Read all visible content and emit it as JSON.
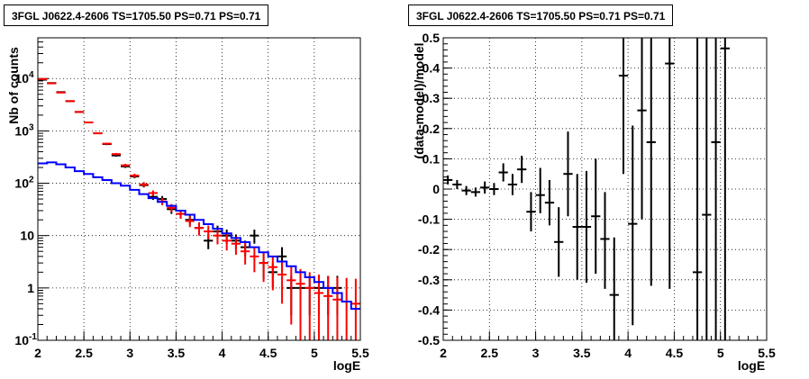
{
  "chart_data": [
    {
      "type": "scatter",
      "title": "3FGL J0622.4-2606 TS=1705.50 PS=0.71 PS=0.71",
      "xlabel": "logE",
      "ylabel": "Nb of counts",
      "xlim": [
        2,
        5.5
      ],
      "ylim": [
        0.1,
        60000
      ],
      "yscale": "log",
      "grid": true,
      "x_ticks": [
        "2",
        "2.5",
        "3",
        "3.5",
        "4",
        "4.5",
        "5",
        "5.5"
      ],
      "y_ticks": [
        {
          "v": 0.1,
          "label": "10",
          "exp": "-1"
        },
        {
          "v": 1,
          "label": "1",
          "exp": ""
        },
        {
          "v": 10,
          "label": "10",
          "exp": ""
        },
        {
          "v": 100,
          "label": "10",
          "exp": "2"
        },
        {
          "v": 1000,
          "label": "10",
          "exp": "3"
        },
        {
          "v": 10000,
          "label": "10",
          "exp": "4"
        }
      ],
      "series": [
        {
          "color": "#000000",
          "style": "errorbar",
          "points": [
            [
              2.05,
              9500,
              9400,
              9600
            ],
            [
              2.15,
              8200,
              8100,
              8300
            ],
            [
              2.25,
              5500,
              5420,
              5580
            ],
            [
              2.35,
              3700,
              3640,
              3760
            ],
            [
              2.45,
              2300,
              2250,
              2350
            ],
            [
              2.55,
              1450,
              1410,
              1490
            ],
            [
              2.65,
              900,
              870,
              930
            ],
            [
              2.75,
              560,
              536,
              584
            ],
            [
              2.85,
              340,
              322,
              358
            ],
            [
              2.95,
              210,
              196,
              224
            ],
            [
              3.05,
              135,
              124,
              146
            ],
            [
              3.15,
              92,
              83,
              101
            ],
            [
              3.25,
              55,
              48,
              62
            ],
            [
              3.35,
              50,
              43,
              57
            ],
            [
              3.45,
              32,
              26,
              38
            ],
            [
              3.55,
              26,
              21,
              31
            ],
            [
              3.65,
              20,
              16,
              24
            ],
            [
              3.75,
              14,
              10.5,
              17.5
            ],
            [
              3.85,
              8,
              5.5,
              10.5
            ],
            [
              3.95,
              12,
              8.5,
              15.5
            ],
            [
              4.05,
              10,
              7,
              13
            ],
            [
              4.15,
              8,
              5.5,
              10.5
            ],
            [
              4.25,
              6,
              4,
              8
            ],
            [
              4.35,
              10,
              7,
              13
            ],
            [
              4.45,
              3,
              1.5,
              4.5
            ],
            [
              4.55,
              2,
              1,
              3
            ],
            [
              4.65,
              4,
              2,
              6
            ],
            [
              4.75,
              1,
              0.3,
              1.7
            ],
            [
              4.85,
              1,
              0.3,
              1.7
            ],
            [
              4.95,
              1,
              0.3,
              1.7
            ],
            [
              5.05,
              1,
              0.3,
              1.7
            ],
            [
              5.15,
              1,
              0.3,
              1.7
            ],
            [
              5.25,
              1,
              0.3,
              1.7
            ]
          ]
        },
        {
          "color": "#ff0000",
          "style": "errorbar",
          "points": [
            [
              2.05,
              9800,
              9700,
              9900
            ],
            [
              2.15,
              8100,
              8010,
              8190
            ],
            [
              2.25,
              5400,
              5330,
              5470
            ],
            [
              2.35,
              3700,
              3640,
              3760
            ],
            [
              2.45,
              2300,
              2250,
              2350
            ],
            [
              2.55,
              1450,
              1410,
              1490
            ],
            [
              2.65,
              900,
              870,
              930
            ],
            [
              2.75,
              570,
              546,
              594
            ],
            [
              2.85,
              360,
              341,
              379
            ],
            [
              2.95,
              220,
              205,
              235
            ],
            [
              3.05,
              140,
              128,
              152
            ],
            [
              3.15,
              95,
              85,
              105
            ],
            [
              3.25,
              65,
              57,
              73
            ],
            [
              3.35,
              45,
              38,
              52
            ],
            [
              3.45,
              34,
              28,
              40
            ],
            [
              3.55,
              26,
              21,
              31
            ],
            [
              3.65,
              19,
              14.5,
              23.5
            ],
            [
              3.75,
              14,
              10,
              18
            ],
            [
              3.85,
              12,
              8.5,
              15.5
            ],
            [
              3.95,
              10,
              6.8,
              13.2
            ],
            [
              4.05,
              8,
              5.2,
              10.8
            ],
            [
              4.15,
              7,
              4.3,
              9.7
            ],
            [
              4.25,
              5,
              2.8,
              7.2
            ],
            [
              4.35,
              4,
              2,
              6
            ],
            [
              4.45,
              3,
              1.3,
              4.7
            ],
            [
              4.55,
              2.5,
              0.9,
              4.1
            ],
            [
              4.65,
              1.8,
              0.5,
              3.1
            ],
            [
              4.75,
              1.4,
              0.2,
              2.6
            ],
            [
              4.85,
              1.2,
              0.1,
              2.3
            ],
            [
              4.95,
              1,
              0.1,
              2.0
            ],
            [
              5.05,
              0.8,
              0.1,
              1.8
            ],
            [
              5.15,
              0.7,
              0.1,
              1.7
            ],
            [
              5.25,
              0.6,
              0.1,
              1.6
            ],
            [
              5.35,
              0.55,
              0.1,
              1.55
            ],
            [
              5.45,
              0.5,
              0.1,
              1.5
            ]
          ]
        },
        {
          "color": "#0000ff",
          "style": "step",
          "edges": [
            2.0,
            2.1,
            2.2,
            2.3,
            2.4,
            2.5,
            2.6,
            2.7,
            2.8,
            2.9,
            3.0,
            3.1,
            3.2,
            3.3,
            3.4,
            3.5,
            3.6,
            3.7,
            3.8,
            3.9,
            4.0,
            4.1,
            4.2,
            4.3,
            4.4,
            4.5,
            4.6,
            4.7,
            4.8,
            4.9,
            5.0,
            5.1,
            5.2,
            5.3,
            5.4,
            5.5
          ],
          "values": [
            240,
            250,
            230,
            200,
            170,
            150,
            130,
            115,
            100,
            90,
            75,
            62,
            52,
            44,
            37,
            30,
            25,
            20,
            16.5,
            13.5,
            11,
            9,
            7.5,
            6,
            4.8,
            4,
            3.2,
            2.6,
            2.0,
            1.6,
            1.3,
            1.0,
            0.8,
            0.55,
            0.4
          ]
        }
      ]
    },
    {
      "type": "scatter",
      "title": "3FGL J0622.4-2606 TS=1705.50 PS=0.71 PS=0.71",
      "xlabel": "logE",
      "ylabel": "(data-model)/model",
      "xlim": [
        2,
        5.5
      ],
      "ylim": [
        -0.5,
        0.5
      ],
      "grid": true,
      "x_ticks": [
        "2",
        "2.5",
        "3",
        "3.5",
        "4",
        "4.5",
        "5",
        "5.5"
      ],
      "y_ticks": [
        "-0.5",
        "-0.4",
        "-0.3",
        "-0.2",
        "-0.1",
        "0",
        "0.1",
        "0.2",
        "0.3",
        "0.4",
        "0.5"
      ],
      "series": [
        {
          "color": "#000000",
          "style": "errorbar",
          "points": [
            [
              2.05,
              0.03,
              0.015,
              0.045
            ],
            [
              2.15,
              0.015,
              0.0,
              0.03
            ],
            [
              2.25,
              -0.005,
              -0.02,
              0.01
            ],
            [
              2.35,
              -0.01,
              -0.025,
              0.005
            ],
            [
              2.45,
              0.005,
              -0.015,
              0.025
            ],
            [
              2.55,
              0.0,
              -0.02,
              0.02
            ],
            [
              2.65,
              0.055,
              0.025,
              0.085
            ],
            [
              2.75,
              0.015,
              -0.02,
              0.05
            ],
            [
              2.85,
              0.065,
              0.02,
              0.11
            ],
            [
              2.95,
              -0.075,
              -0.14,
              -0.01
            ],
            [
              3.05,
              -0.02,
              -0.08,
              0.07
            ],
            [
              3.15,
              -0.045,
              -0.12,
              0.03
            ],
            [
              3.25,
              -0.175,
              -0.29,
              -0.06
            ],
            [
              3.35,
              0.05,
              -0.09,
              0.19
            ],
            [
              3.45,
              -0.125,
              -0.3,
              0.05
            ],
            [
              3.55,
              -0.125,
              -0.31,
              0.06
            ],
            [
              3.65,
              -0.09,
              -0.28,
              0.1
            ],
            [
              3.75,
              -0.165,
              -0.33,
              -0.01
            ],
            [
              3.85,
              -0.35,
              -0.5,
              -0.16
            ],
            [
              3.95,
              0.375,
              0.05,
              0.5
            ],
            [
              4.05,
              -0.115,
              -0.45,
              0.21
            ],
            [
              4.15,
              0.26,
              -0.1,
              0.5
            ],
            [
              4.25,
              0.155,
              -0.32,
              0.5
            ],
            [
              4.45,
              0.415,
              -0.33,
              0.5
            ],
            [
              4.75,
              -0.275,
              -0.5,
              0.5
            ],
            [
              4.85,
              -0.085,
              -0.5,
              0.5
            ],
            [
              4.95,
              0.155,
              -0.5,
              0.5
            ],
            [
              5.05,
              0.465,
              -0.5,
              0.5
            ]
          ]
        }
      ]
    }
  ]
}
